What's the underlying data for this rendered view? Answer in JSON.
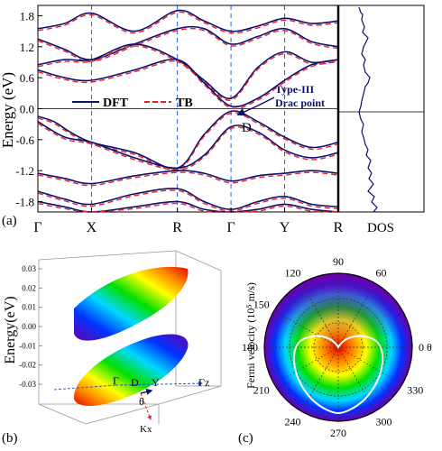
{
  "chart_data": [
    {
      "type": "line",
      "panel_label": "(a)",
      "ylabel": "Energy (eV)",
      "ylim": [
        -2.0,
        2.0
      ],
      "yticks": [
        "-1.8",
        "-1.2",
        "-0.6",
        "0.0",
        "0.6",
        "1.2",
        "1.8"
      ],
      "ytick_values": [
        -1.8,
        -1.2,
        -0.6,
        0.0,
        0.6,
        1.2,
        1.8
      ],
      "kpath": [
        "Γ",
        "X",
        "R",
        "Γ",
        "Y",
        "R"
      ],
      "kpath_positions": [
        0,
        1,
        2.6,
        3.6,
        4.6,
        5.6
      ],
      "legend": [
        "DFT",
        "TB"
      ],
      "series_colors": {
        "DFT": "#0b0f6e",
        "TB": "#e8202a"
      },
      "annotations": {
        "point_label": "D",
        "callout": [
          "Type-III",
          "Drac point"
        ]
      },
      "dos_label": "DOS",
      "bands": [
        {
          "x": [
            0,
            0.5,
            1,
            1.8,
            2.6,
            3.1,
            3.6,
            4.1,
            4.6,
            5.1,
            5.6
          ],
          "y": [
            1.55,
            1.65,
            1.85,
            1.5,
            1.9,
            1.7,
            1.5,
            1.6,
            1.75,
            1.65,
            1.7
          ]
        },
        {
          "x": [
            0,
            0.5,
            1,
            1.8,
            2.6,
            3.1,
            3.6,
            4.1,
            4.6,
            5.1,
            5.6
          ],
          "y": [
            1.35,
            1.15,
            0.95,
            1.25,
            1.55,
            1.55,
            1.25,
            1.4,
            1.55,
            1.3,
            1.2
          ]
        },
        {
          "x": [
            0,
            0.5,
            1,
            1.8,
            2.6,
            3.1,
            3.6,
            4.1,
            4.6,
            5.1,
            5.6
          ],
          "y": [
            0.85,
            0.95,
            0.95,
            1.25,
            0.95,
            0.55,
            0.2,
            0.8,
            1.1,
            0.9,
            0.95
          ]
        },
        {
          "x": [
            0,
            0.5,
            1,
            1.8,
            2.6,
            3.1,
            3.6,
            4.1,
            4.6,
            5.1,
            5.6
          ],
          "y": [
            0.75,
            0.6,
            0.55,
            0.75,
            0.95,
            0.5,
            0.05,
            0.2,
            0.55,
            0.85,
            0.95
          ]
        },
        {
          "x": [
            0,
            0.3,
            0.6,
            1,
            1.8,
            2.6,
            3.1,
            3.6,
            4.1,
            4.6,
            5.1,
            5.6
          ],
          "y": [
            -0.15,
            -0.25,
            -0.45,
            -0.65,
            -0.85,
            -1.15,
            -0.5,
            -0.05,
            -0.25,
            -0.55,
            -0.75,
            -0.65
          ]
        },
        {
          "x": [
            0,
            0.5,
            1,
            1.8,
            2.6,
            3.1,
            3.6,
            4.1,
            4.6,
            5.1,
            5.6
          ],
          "y": [
            -0.25,
            -0.55,
            -0.65,
            -0.95,
            -1.15,
            -0.9,
            -0.35,
            -0.45,
            -0.8,
            -0.95,
            -0.85
          ]
        },
        {
          "x": [
            0,
            0.5,
            1,
            1.8,
            2.6,
            3.1,
            3.6,
            4.1,
            4.6,
            5.1,
            5.6
          ],
          "y": [
            -1.25,
            -1.35,
            -1.45,
            -1.3,
            -1.2,
            -1.25,
            -1.4,
            -1.3,
            -1.25,
            -1.2,
            -1.25
          ]
        },
        {
          "x": [
            0,
            0.5,
            1,
            1.8,
            2.6,
            3.1,
            3.6,
            4.1,
            4.6,
            5.1,
            5.6
          ],
          "y": [
            -1.6,
            -1.75,
            -1.85,
            -1.65,
            -1.55,
            -1.8,
            -1.95,
            -1.8,
            -1.7,
            -1.85,
            -1.9
          ]
        },
        {
          "x": [
            0,
            0.5,
            1,
            1.8,
            2.6,
            3.1,
            3.6,
            4.1,
            4.6,
            5.1,
            5.6
          ],
          "y": [
            -1.8,
            -1.9,
            -2.0,
            -1.9,
            -1.8,
            -1.95,
            -2.0,
            -1.95,
            -1.85,
            -1.95,
            -2.0
          ]
        }
      ]
    },
    {
      "type": "surface",
      "panel_label": "(b)",
      "zlabel": "Energy(eV)",
      "zlim": [
        -0.03,
        0.03
      ],
      "zticks": [
        "0.03",
        "0.02",
        "0.01",
        "0.00",
        "-0.01",
        "-0.02",
        "-0.03"
      ],
      "axis_labels": {
        "gamma": "Γ",
        "d": "D",
        "y": "Y",
        "gamma_z": "Γz",
        "theta": "θ",
        "kx": "Kx"
      }
    },
    {
      "type": "polar",
      "panel_label": "(c)",
      "ylabel": "Fermi velocity (10⁵ m/s)",
      "angle_ticks": [
        "90",
        "60",
        "0 θ",
        "330",
        "300",
        "270",
        "240",
        "210",
        "180",
        "150",
        "120"
      ],
      "angle_tick_degrees": [
        90,
        60,
        0,
        330,
        300,
        270,
        240,
        210,
        180,
        150,
        120
      ],
      "curve": "cardioid"
    }
  ]
}
